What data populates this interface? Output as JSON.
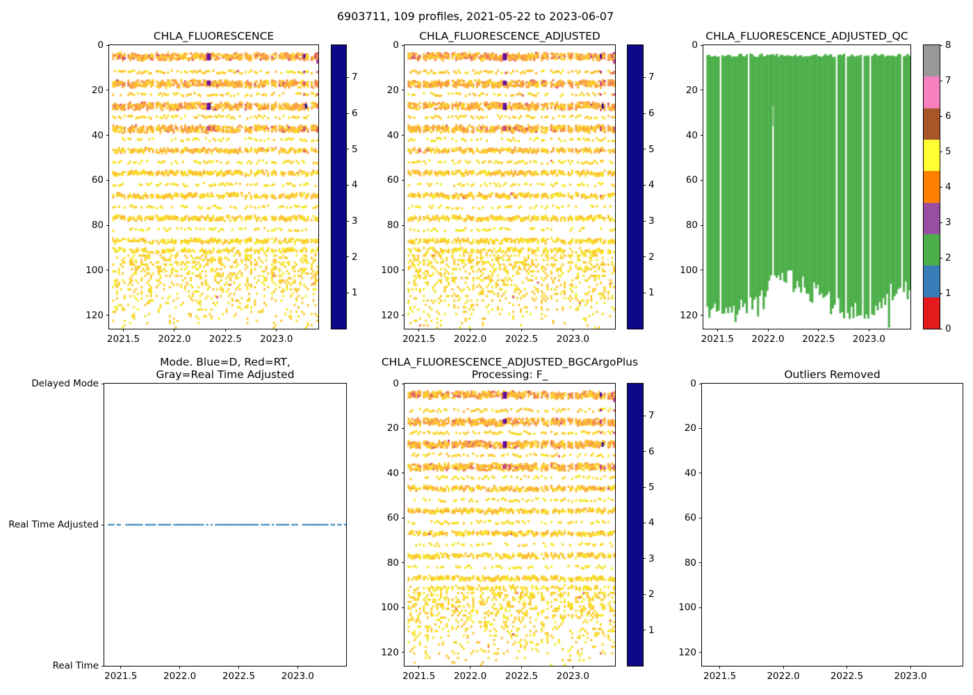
{
  "figure": {
    "suptitle": "6903711, 109 profiles, 2021-05-22 to 2023-06-07",
    "background": "#ffffff"
  },
  "palette": {
    "plasma": [
      [
        0,
        "#0d0887"
      ],
      [
        0.1,
        "#41049d"
      ],
      [
        0.2,
        "#6a00a8"
      ],
      [
        0.3,
        "#8f0da4"
      ],
      [
        0.4,
        "#b12a90"
      ],
      [
        0.5,
        "#cc4778"
      ],
      [
        0.6,
        "#e16462"
      ],
      [
        0.7,
        "#f2844b"
      ],
      [
        0.8,
        "#fca636"
      ],
      [
        0.9,
        "#fcce25"
      ],
      [
        1,
        "#f0f921"
      ]
    ],
    "qc_colors": [
      "#e41a1c",
      "#377eb8",
      "#4daf4a",
      "#984ea3",
      "#ff7f00",
      "#ffff33",
      "#a65628",
      "#f781bf",
      "#999999"
    ],
    "qc_fill": "#4daf4a",
    "mode_dot": "#1f77b4",
    "axis": "#000000"
  },
  "profiles": {
    "count": 109,
    "start_year": 2021.4,
    "end_year": 2023.4,
    "missing_profile_years": [
      2021.53,
      2021.81,
      2022.68,
      2022.77,
      2022.94,
      2023.02,
      2023.32
    ],
    "short_profile": {
      "year": 2022.05,
      "max_depth": 27,
      "tail_depth": 36
    }
  },
  "chart_data": [
    {
      "type": "heatmap",
      "title": "CHLA_FLUORESCENCE",
      "xlim": [
        2021.36,
        2023.41
      ],
      "ylim": [
        126,
        0
      ],
      "x_tick_values": [
        2021.5,
        2022.0,
        2022.5,
        2023.0
      ],
      "x_tick_labels": [
        "2021.5",
        "2022.0",
        "2022.5",
        "2023.0"
      ],
      "y_tick_values": [
        0,
        20,
        40,
        60,
        80,
        100,
        120
      ],
      "y_tick_labels": [
        "0",
        "20",
        "40",
        "60",
        "80",
        "100",
        "120"
      ],
      "colorbar": {
        "colormap": "plasma_r",
        "vmin": 0,
        "vmax": 7.9,
        "tick_values": [
          1,
          2,
          3,
          4,
          5,
          6,
          7
        ],
        "tick_labels": [
          "1",
          "2",
          "3",
          "4",
          "5",
          "6",
          "7"
        ]
      },
      "seed": 11,
      "bands": [
        {
          "depth": 5,
          "thickness": 2.8,
          "density": 0.93,
          "value_range": [
            0.6,
            2.6
          ],
          "hot_prob": 0.04
        },
        {
          "depth": 12,
          "thickness": 1.2,
          "density": 0.72,
          "value_range": [
            0.3,
            1.4
          ],
          "hot_prob": 0.01
        },
        {
          "depth": 17,
          "thickness": 2.6,
          "density": 0.9,
          "value_range": [
            0.6,
            2.4
          ],
          "hot_prob": 0.03
        },
        {
          "depth": 22,
          "thickness": 1.2,
          "density": 0.68,
          "value_range": [
            0.3,
            1.3
          ],
          "hot_prob": 0.01
        },
        {
          "depth": 27,
          "thickness": 2.7,
          "density": 0.9,
          "value_range": [
            0.6,
            2.4
          ],
          "hot_prob": 0.03
        },
        {
          "depth": 32,
          "thickness": 1.2,
          "density": 0.65,
          "value_range": [
            0.3,
            1.2
          ],
          "hot_prob": 0.01
        },
        {
          "depth": 37,
          "thickness": 2.5,
          "density": 0.88,
          "value_range": [
            0.5,
            2.2
          ],
          "hot_prob": 0.04
        },
        {
          "depth": 42,
          "thickness": 1.1,
          "density": 0.55,
          "value_range": [
            0.2,
            1.0
          ],
          "hot_prob": 0
        },
        {
          "depth": 47,
          "thickness": 2.4,
          "density": 0.88,
          "value_range": [
            0.4,
            1.9
          ],
          "hot_prob": 0.01
        },
        {
          "depth": 52,
          "thickness": 1.1,
          "density": 0.6,
          "value_range": [
            0.2,
            1.0
          ],
          "hot_prob": 0.01
        },
        {
          "depth": 57,
          "thickness": 2.3,
          "density": 0.87,
          "value_range": [
            0.35,
            1.7
          ],
          "hot_prob": 0
        },
        {
          "depth": 62,
          "thickness": 1.1,
          "density": 0.55,
          "value_range": [
            0.2,
            0.9
          ],
          "hot_prob": 0
        },
        {
          "depth": 67,
          "thickness": 2.2,
          "density": 0.85,
          "value_range": [
            0.3,
            1.5
          ],
          "hot_prob": 0.01
        },
        {
          "depth": 72,
          "thickness": 1.1,
          "density": 0.5,
          "value_range": [
            0.2,
            0.9
          ],
          "hot_prob": 0
        },
        {
          "depth": 77,
          "thickness": 2.2,
          "density": 0.85,
          "value_range": [
            0.3,
            1.4
          ],
          "hot_prob": 0
        },
        {
          "depth": 82,
          "thickness": 1.1,
          "density": 0.5,
          "value_range": [
            0.2,
            0.8
          ],
          "hot_prob": 0
        },
        {
          "depth": 87,
          "thickness": 2.0,
          "density": 0.82,
          "value_range": [
            0.3,
            1.3
          ],
          "hot_prob": 0
        },
        {
          "depth": 91,
          "thickness": 1.5,
          "density": 0.68,
          "value_range": [
            0.2,
            1.1
          ],
          "hot_prob": 0
        }
      ],
      "speckle": {
        "top_depth": 93,
        "bottom_depth": 125,
        "max_density": 0.38,
        "value_range": [
          0.15,
          1.15
        ],
        "hot_prob": 0.004
      },
      "features": [
        {
          "year": 2022.335,
          "depth": 5,
          "thickness": 2.6,
          "value": 6.5
        },
        {
          "year": 2022.353,
          "depth": 5,
          "thickness": 2.6,
          "value": 6.8
        },
        {
          "year": 2022.335,
          "depth": 17,
          "thickness": 2.4,
          "value": 6.3
        },
        {
          "year": 2022.353,
          "depth": 17,
          "thickness": 2.4,
          "value": 6.6
        },
        {
          "year": 2022.335,
          "depth": 27,
          "thickness": 2.6,
          "value": 6.4
        },
        {
          "year": 2022.353,
          "depth": 27,
          "thickness": 2.6,
          "value": 6.9
        },
        {
          "year": 2022.32,
          "depth": 37,
          "thickness": 2.2,
          "value": 4.3
        },
        {
          "year": 2022.35,
          "depth": 37,
          "thickness": 2.2,
          "value": 4.0
        },
        {
          "year": 2022.39,
          "depth": 37,
          "thickness": 1.8,
          "value": 3.7
        },
        {
          "year": 2021.46,
          "depth": 5,
          "thickness": 1.6,
          "value": 3.4
        },
        {
          "year": 2021.5,
          "depth": 5.8,
          "thickness": 1.2,
          "value": 3.8
        },
        {
          "year": 2023.27,
          "depth": 5,
          "thickness": 2.2,
          "value": 6.9
        },
        {
          "year": 2023.27,
          "depth": 12,
          "thickness": 1.2,
          "value": 5.0
        },
        {
          "year": 2023.27,
          "depth": 17,
          "thickness": 2.0,
          "value": 4.1
        },
        {
          "year": 2023.27,
          "depth": 22,
          "thickness": 1.2,
          "value": 3.6
        },
        {
          "year": 2023.285,
          "depth": 27,
          "thickness": 1.7,
          "value": 7.85
        },
        {
          "year": 2023.27,
          "depth": 37,
          "thickness": 1.6,
          "value": 4.2
        },
        {
          "year": 2023.27,
          "depth": 47,
          "thickness": 1.3,
          "value": 3.0
        },
        {
          "year": 2023.38,
          "depth": 5,
          "thickness": 2.4,
          "value": 3.9
        },
        {
          "year": 2023.4,
          "depth": 7,
          "thickness": 1.6,
          "value": 4.5
        },
        {
          "year": 2023.4,
          "depth": 12,
          "thickness": 1.1,
          "value": 3.2
        },
        {
          "year": 2023.39,
          "depth": 17,
          "thickness": 2.0,
          "value": 2.6
        },
        {
          "year": 2023.4,
          "depth": 22,
          "thickness": 1.1,
          "value": 3.6
        },
        {
          "year": 2023.4,
          "depth": 27,
          "thickness": 1.7,
          "value": 2.5
        },
        {
          "year": 2023.4,
          "depth": 37,
          "thickness": 1.5,
          "value": 3.4
        },
        {
          "year": 2022.42,
          "depth": 112,
          "thickness": 1.1,
          "value": 3.6
        },
        {
          "year": 2023.37,
          "depth": 106,
          "thickness": 1.1,
          "value": 2.4
        }
      ]
    },
    {
      "type": "heatmap",
      "title": "CHLA_FLUORESCENCE_ADJUSTED",
      "same_data_as": 0,
      "xlim": [
        2021.36,
        2023.41
      ],
      "ylim": [
        126,
        0
      ],
      "x_tick_values": [
        2021.5,
        2022.0,
        2022.5,
        2023.0
      ],
      "x_tick_labels": [
        "2021.5",
        "2022.0",
        "2022.5",
        "2023.0"
      ],
      "y_tick_values": [
        0,
        20,
        40,
        60,
        80,
        100,
        120
      ],
      "y_tick_labels": [
        "0",
        "20",
        "40",
        "60",
        "80",
        "100",
        "120"
      ],
      "colorbar": {
        "colormap": "plasma_r",
        "vmin": 0,
        "vmax": 7.9,
        "tick_values": [
          1,
          2,
          3,
          4,
          5,
          6,
          7
        ],
        "tick_labels": [
          "1",
          "2",
          "3",
          "4",
          "5",
          "6",
          "7"
        ]
      },
      "seed": 12
    },
    {
      "type": "qc-bars",
      "title": "CHLA_FLUORESCENCE_ADJUSTED_QC",
      "xlim": [
        2021.36,
        2023.41
      ],
      "ylim": [
        126,
        0
      ],
      "x_tick_values": [
        2021.5,
        2022.0,
        2022.5,
        2023.0
      ],
      "x_tick_labels": [
        "2021.5",
        "2022.0",
        "2022.5",
        "2023.0"
      ],
      "y_tick_values": [
        0,
        20,
        40,
        60,
        80,
        100,
        120
      ],
      "y_tick_labels": [
        "0",
        "20",
        "40",
        "60",
        "80",
        "100",
        "120"
      ],
      "colorbar": {
        "colormap": "qc_discrete",
        "vmin": 0,
        "vmax": 8,
        "tick_values": [
          0,
          1,
          2,
          3,
          4,
          5,
          6,
          7,
          8
        ],
        "tick_labels": [
          "0",
          "1",
          "2",
          "3",
          "4",
          "5",
          "6",
          "7",
          "8"
        ]
      },
      "fill_qc_value": 2,
      "bar_top_depth_range": [
        3.7,
        5.3
      ],
      "bar_bottom_depth_range": [
        99,
        125
      ],
      "shallow_bottom_interval": {
        "years": [
          2022.0,
          2022.24
        ],
        "bottom_range": [
          100,
          106
        ]
      },
      "deep_bar": {
        "year": 2023.19,
        "bottom": 125.5
      },
      "seed": 21
    },
    {
      "type": "mode-dots",
      "title_line1": "Mode. Blue=D, Red=RT,",
      "title_line2": "Gray=Real Time Adjusted",
      "y_categories": [
        "Delayed Mode",
        "Real Time Adjusted",
        "Real Time"
      ],
      "dots_at_category": "Real Time Adjusted",
      "xlim": [
        2021.36,
        2023.41
      ],
      "x_tick_values": [
        2021.5,
        2022.0,
        2022.5,
        2023.0
      ],
      "x_tick_labels": [
        "2021.5",
        "2022.0",
        "2022.5",
        "2023.0"
      ],
      "skip_probability": 0.12,
      "seed": 31
    },
    {
      "type": "heatmap",
      "title_line1": "CHLA_FLUORESCENCE_ADJUSTED_BGCArgoPlus",
      "title_line2": "Processing: F_",
      "same_data_as": 0,
      "xlim": [
        2021.36,
        2023.41
      ],
      "ylim": [
        126,
        0
      ],
      "x_tick_values": [
        2021.5,
        2022.0,
        2022.5,
        2023.0
      ],
      "x_tick_labels": [
        "2021.5",
        "2022.0",
        "2022.5",
        "2023.0"
      ],
      "y_tick_values": [
        0,
        20,
        40,
        60,
        80,
        100,
        120
      ],
      "y_tick_labels": [
        "0",
        "20",
        "40",
        "60",
        "80",
        "100",
        "120"
      ],
      "colorbar": {
        "colormap": "plasma_r",
        "vmin": 0,
        "vmax": 7.9,
        "tick_values": [
          1,
          2,
          3,
          4,
          5,
          6,
          7
        ],
        "tick_labels": [
          "1",
          "2",
          "3",
          "4",
          "5",
          "6",
          "7"
        ]
      },
      "seed": 13
    },
    {
      "type": "empty",
      "title": "Outliers Removed",
      "xlim": [
        2021.36,
        2023.41
      ],
      "ylim": [
        126,
        0
      ],
      "x_tick_values": [
        2021.5,
        2022.0,
        2022.5,
        2023.0
      ],
      "x_tick_labels": [
        "2021.5",
        "2022.0",
        "2022.5",
        "2023.0"
      ],
      "y_tick_values": [
        0,
        20,
        40,
        60,
        80,
        100,
        120
      ],
      "y_tick_labels": [
        "0",
        "20",
        "40",
        "60",
        "80",
        "100",
        "120"
      ],
      "points": []
    }
  ]
}
